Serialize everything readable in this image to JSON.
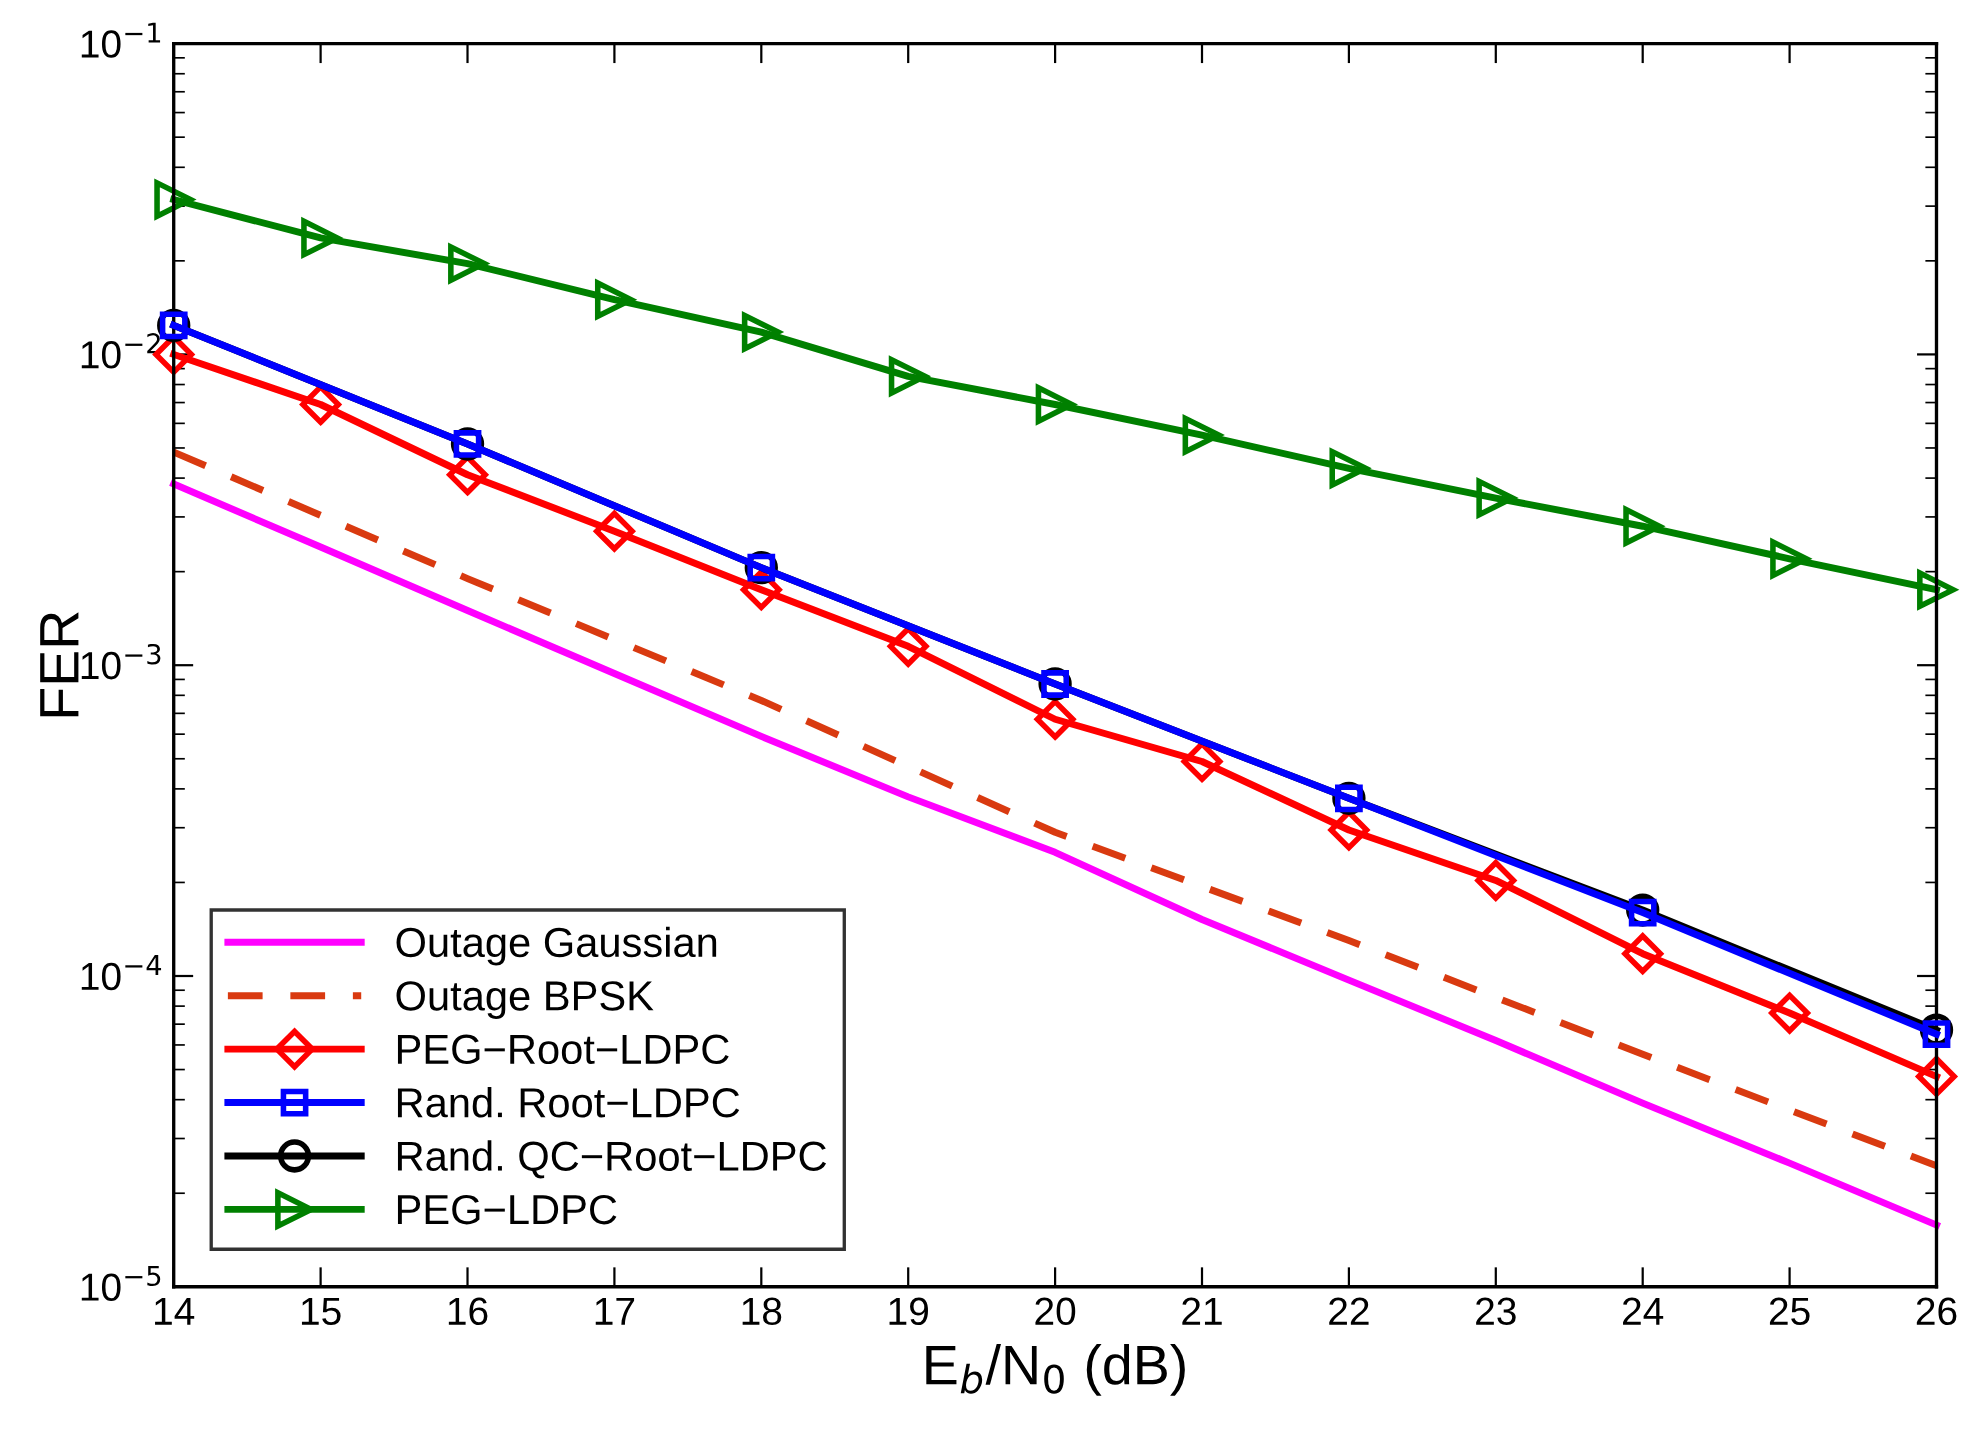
{
  "chart_data": {
    "type": "line",
    "xlabel": "E$_{b}$/N$_{0}$ (dB)",
    "ylabel": "FER",
    "log": "y",
    "grid": false,
    "legend": "bottom left",
    "xlim": [
      14,
      26
    ],
    "xticks": [
      14,
      15,
      16,
      17,
      18,
      19,
      20,
      21,
      22,
      23,
      24,
      25,
      26
    ],
    "ylim": [
      1e-05,
      0.1
    ],
    "yticks": [
      {
        "value": 1e-05,
        "label": "10$^{−5}$"
      },
      {
        "value": 0.0001,
        "label": "10$^{−4}$"
      },
      {
        "value": 0.001,
        "label": "10$^{−3}$"
      },
      {
        "value": 0.01,
        "label": "10$^{−2}$"
      },
      {
        "value": 0.1,
        "label": "10$^{−1}$"
      }
    ],
    "series": [
      {
        "name": "Outage Gaussian",
        "color": "#ff00ff",
        "marker": "none",
        "line_style": "solid",
        "x": [
          14,
          15,
          16,
          17,
          18,
          19,
          20,
          21,
          22,
          23,
          24,
          25,
          26
        ],
        "values": [
          0.00383,
          0.0024,
          0.0015,
          0.00094,
          0.00059,
          0.000377,
          0.00025,
          0.000152,
          9.7e-05,
          6.2e-05,
          3.9e-05,
          2.5e-05,
          1.58e-05
        ]
      },
      {
        "name": "Outage BPSK",
        "color": "#d93a10",
        "marker": "none",
        "line_style": "dashed",
        "x": [
          14,
          16,
          18,
          20,
          22,
          24,
          26
        ],
        "values": [
          0.00485,
          0.0019,
          0.00077,
          0.00029,
          0.00013,
          5.6e-05,
          2.45e-05
        ]
      },
      {
        "name": "PEG−Root−LDPC",
        "color": "#ff0000",
        "marker": "diamond",
        "line_style": "solid",
        "x": [
          14,
          15,
          16,
          17,
          18,
          19,
          20,
          21,
          22,
          23,
          24,
          25,
          26
        ],
        "values": [
          0.01,
          0.0069,
          0.0041,
          0.0027,
          0.00175,
          0.00115,
          0.00067,
          0.00049,
          0.000295,
          0.000203,
          0.000118,
          7.6e-05,
          4.75e-05
        ]
      },
      {
        "name": "Rand. Root−LDPC",
        "color": "#0000ff",
        "marker": "square",
        "line_style": "solid",
        "x": [
          14,
          16,
          18,
          20,
          22,
          24,
          26
        ],
        "values": [
          0.0124,
          0.00515,
          0.00206,
          0.00087,
          0.000373,
          0.00016,
          6.5e-05
        ]
      },
      {
        "name": "Rand. QC−Root−LDPC",
        "color": "#000000",
        "marker": "circle",
        "line_style": "solid",
        "x": [
          14,
          16,
          18,
          20,
          22,
          24,
          26
        ],
        "values": [
          0.0124,
          0.00515,
          0.00206,
          0.00087,
          0.000373,
          0.000163,
          6.7e-05
        ]
      },
      {
        "name": "PEG−LDPC",
        "color": "#008000",
        "marker": "triangle",
        "line_style": "solid",
        "x": [
          14,
          15,
          16,
          17,
          18,
          19,
          20,
          21,
          22,
          23,
          24,
          25,
          26
        ],
        "values": [
          0.0315,
          0.0237,
          0.0196,
          0.015,
          0.0118,
          0.0085,
          0.0069,
          0.0055,
          0.0043,
          0.00345,
          0.0028,
          0.0022,
          0.00175
        ]
      }
    ]
  }
}
